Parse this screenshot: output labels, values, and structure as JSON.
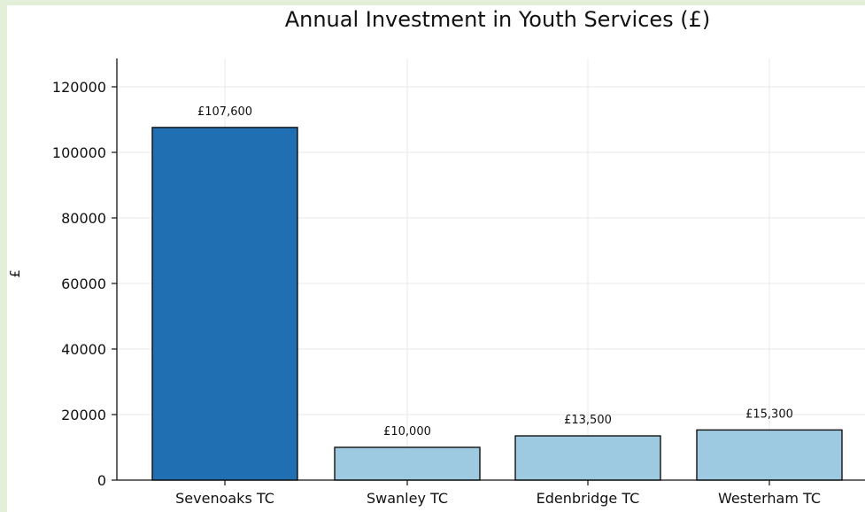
{
  "chart_data": {
    "type": "bar",
    "title": "Annual Investment in Youth Services (£)",
    "xlabel": "",
    "ylabel": "£",
    "categories": [
      "Sevenoaks TC",
      "Swanley TC",
      "Edenbridge TC",
      "Westerham TC"
    ],
    "values": [
      107600,
      10000,
      13500,
      15300
    ],
    "value_labels": [
      "£107,600",
      "£10,000",
      "£13,500",
      "£15,300"
    ],
    "ylim": [
      0,
      128000
    ],
    "yticks": [
      0,
      20000,
      40000,
      60000,
      80000,
      100000,
      120000
    ],
    "ytick_labels": [
      "0",
      "20000",
      "40000",
      "60000",
      "80000",
      "100000",
      "120000"
    ],
    "grid": true,
    "colors": {
      "highlight_bar": "#1f6fb2",
      "other_bar": "#9ecae1",
      "bar_edge": "#111111",
      "grid": "#e8e8e8",
      "frame_background": "#e3efd9"
    }
  }
}
